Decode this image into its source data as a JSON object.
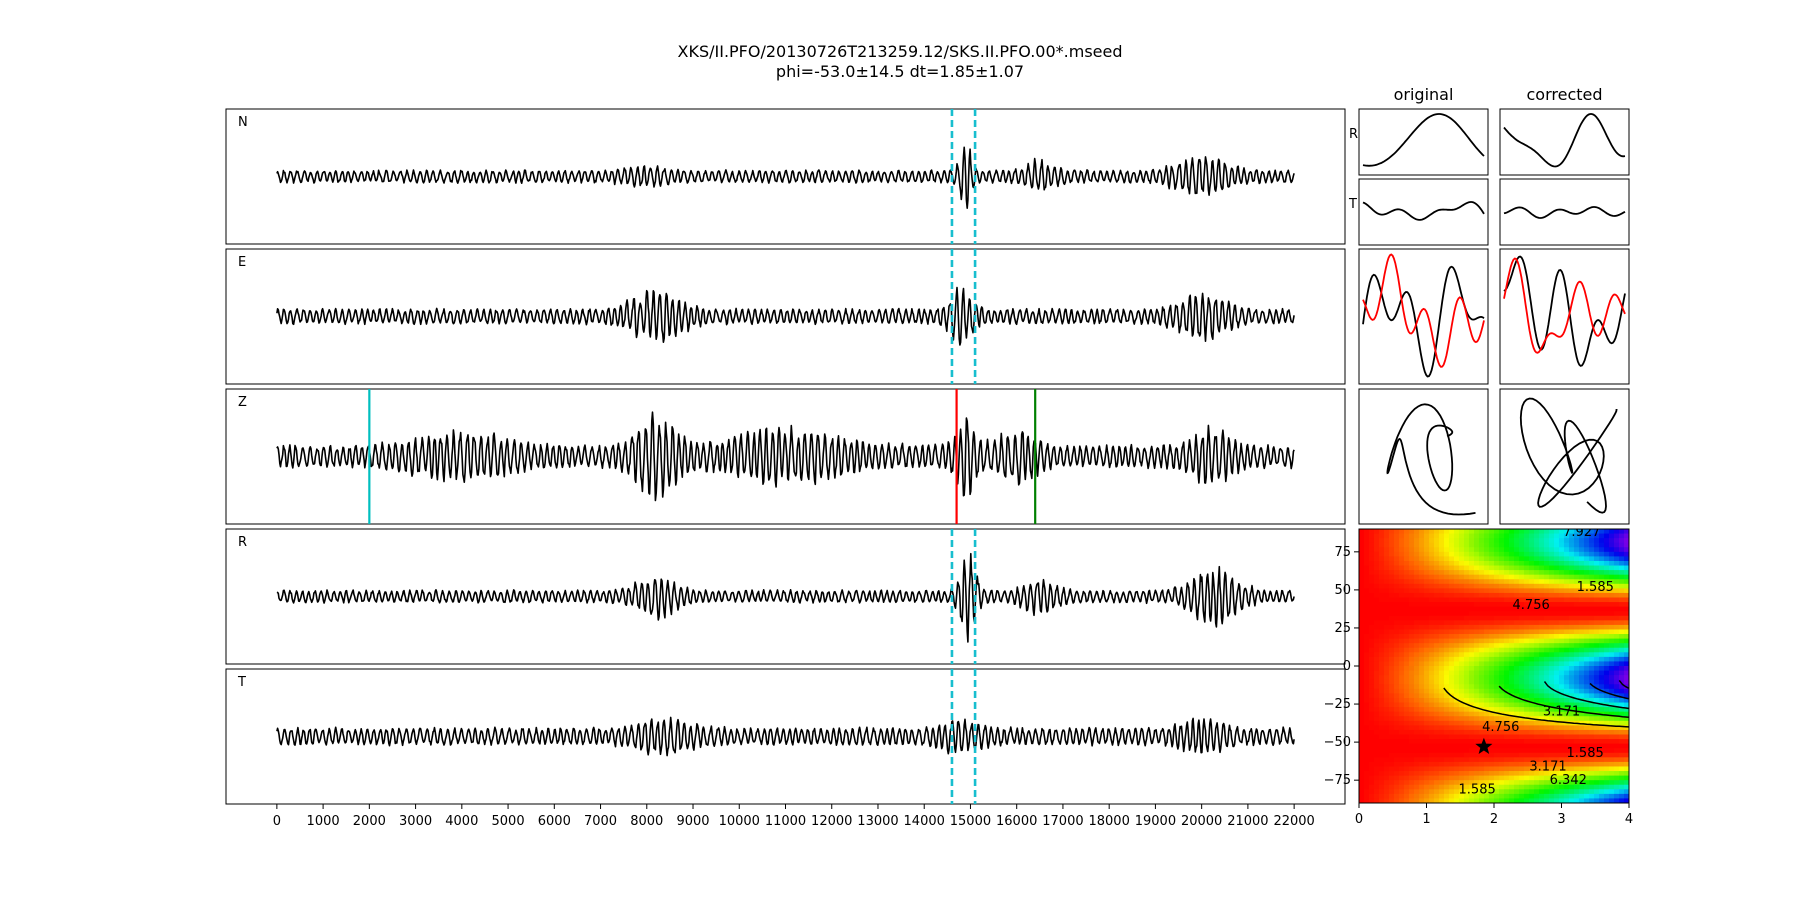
{
  "header": {
    "title": "XKS/II.PFO/20130726T213259.12/SKS.II.PFO.00*.mseed",
    "subtitle": "phi=-53.0±14.5 dt=1.85±1.07"
  },
  "side": {
    "col_original": "original",
    "col_corrected": "corrected",
    "row_r": "R",
    "row_t": "T"
  },
  "colors": {
    "trace": "#000000",
    "window_marker": "#17becf",
    "pick_cyan": "#00bfbf",
    "pick_red": "#ff0000",
    "pick_green": "#008000",
    "alt_trace": "#ff0000"
  },
  "chart_data": [
    {
      "type": "line",
      "id": "waveforms",
      "traces": [
        {
          "name": "N"
        },
        {
          "name": "E"
        },
        {
          "name": "Z"
        },
        {
          "name": "R"
        },
        {
          "name": "T"
        }
      ],
      "xlim": [
        -1100,
        23100
      ],
      "xticks": [
        0,
        1000,
        2000,
        3000,
        4000,
        5000,
        6000,
        7000,
        8000,
        9000,
        10000,
        11000,
        12000,
        13000,
        14000,
        15000,
        16000,
        17000,
        18000,
        19000,
        20000,
        21000,
        22000
      ],
      "trace_range": [
        0,
        22000
      ],
      "analysis_window": [
        14600,
        15100
      ],
      "window_on_traces": [
        "N",
        "E",
        "R",
        "T"
      ],
      "z_picks": [
        {
          "x": 2000,
          "color": "#00bfbf"
        },
        {
          "x": 14700,
          "color": "#ff0000"
        },
        {
          "x": 16400,
          "color": "#008000"
        }
      ]
    },
    {
      "type": "heatmap",
      "id": "misfit-surface",
      "xlim": [
        0,
        4
      ],
      "ylim": [
        -90,
        90
      ],
      "xticks": [
        0,
        1,
        2,
        3,
        4
      ],
      "yticks": [
        75,
        50,
        25,
        0,
        -25,
        -50,
        -75
      ],
      "contour_levels": [
        "1.585",
        "3.171",
        "4.756",
        "6.342",
        "7.927"
      ],
      "best_fit": {
        "dt": 1.85,
        "phi": -53.0
      },
      "colormap": "rainbow"
    }
  ]
}
